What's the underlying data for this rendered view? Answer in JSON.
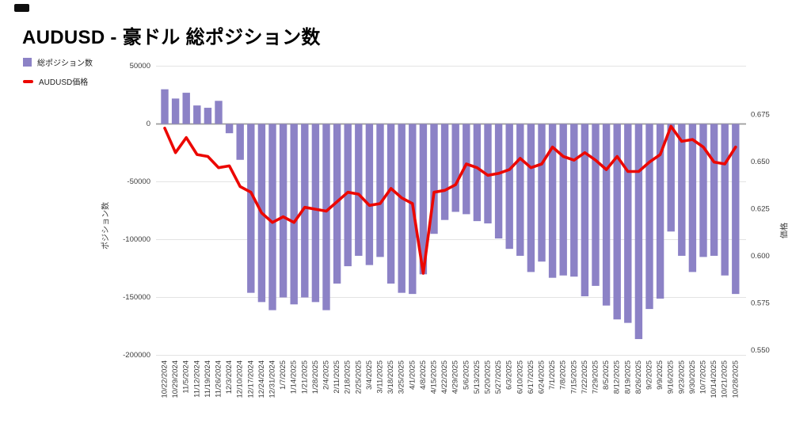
{
  "page": {
    "title": "AUDUSD - 豪ドル 総ポジション数"
  },
  "legend": [
    {
      "label": "総ポジション数",
      "type": "bar"
    },
    {
      "label": "AUDUSD価格",
      "type": "line"
    }
  ],
  "colors": {
    "bar": "#8c82c6",
    "line": "#ec0700",
    "grid": "#e3e3e3",
    "zero_line": "#9b9b9b",
    "text": "#3c3c3c",
    "title": "#000000",
    "background": "#ffffff"
  },
  "chart_data": {
    "type": "combo_bar_line",
    "title": "AUDUSD - 豪ドル 総ポジション数",
    "categories": [
      "10/22/2024",
      "10/29/2024",
      "11/5/2024",
      "11/12/2024",
      "11/19/2024",
      "11/26/2024",
      "12/3/2024",
      "12/10/2024",
      "12/17/2024",
      "12/24/2024",
      "12/31/2024",
      "1/7/2025",
      "1/14/2025",
      "1/21/2025",
      "1/28/2025",
      "2/4/2025",
      "2/11/2025",
      "2/18/2025",
      "2/25/2025",
      "3/4/2025",
      "3/11/2025",
      "3/18/2025",
      "3/25/2025",
      "4/1/2025",
      "4/8/2025",
      "4/15/2025",
      "4/22/2025",
      "4/29/2025",
      "5/6/2025",
      "5/13/2025",
      "5/20/2025",
      "5/27/2025",
      "6/3/2025",
      "6/10/2025",
      "6/17/2025",
      "6/24/2025",
      "7/1/2025",
      "7/8/2025",
      "7/15/2025",
      "7/22/2025",
      "7/29/2025",
      "8/5/2025",
      "8/12/2025",
      "8/19/2025",
      "8/26/2025",
      "9/2/2025",
      "9/9/2025",
      "9/16/2025",
      "9/23/2025",
      "9/30/2025",
      "10/7/2025",
      "10/14/2025",
      "10/21/2025",
      "10/28/2025"
    ],
    "series": [
      {
        "name": "総ポジション数",
        "type": "bar",
        "axis": "left",
        "values": [
          30000,
          22000,
          27000,
          16000,
          14000,
          20000,
          -8000,
          -31000,
          -146000,
          -154000,
          -161000,
          -150000,
          -156000,
          -150000,
          -154000,
          -161000,
          -138000,
          -123000,
          -114000,
          -122000,
          -115000,
          -138000,
          -146000,
          -147000,
          -130000,
          -95000,
          -83000,
          -76000,
          -78000,
          -84000,
          -86000,
          -99000,
          -108000,
          -114000,
          -128000,
          -119000,
          -133000,
          -131000,
          -132000,
          -149000,
          -140000,
          -157000,
          -169000,
          -172000,
          -186000,
          -160000,
          -151000,
          -93000,
          -114000,
          -128000,
          -115000,
          -114000,
          -131000,
          -147000
        ]
      },
      {
        "name": "AUDUSD価格",
        "type": "line",
        "axis": "right",
        "values": [
          0.668,
          0.655,
          0.663,
          0.654,
          0.653,
          0.647,
          0.648,
          0.637,
          0.634,
          0.623,
          0.618,
          0.621,
          0.618,
          0.626,
          0.625,
          0.624,
          0.629,
          0.634,
          0.633,
          0.627,
          0.628,
          0.636,
          0.631,
          0.628,
          0.591,
          0.634,
          0.635,
          0.638,
          0.649,
          0.647,
          0.643,
          0.644,
          0.646,
          0.652,
          0.647,
          0.649,
          0.658,
          0.653,
          0.651,
          0.655,
          0.651,
          0.646,
          0.653,
          0.645,
          0.645,
          0.65,
          0.654,
          0.669,
          0.661,
          0.662,
          0.658,
          0.65,
          0.649,
          0.658
        ]
      }
    ],
    "left_axis": {
      "label": "ポジション数",
      "ticks": [
        50000,
        0,
        -50000,
        -100000,
        -150000,
        -200000
      ],
      "range": [
        -200000,
        50000
      ]
    },
    "right_axis": {
      "label": "価格",
      "ticks": [
        0.675,
        0.65,
        0.625,
        0.6,
        0.575,
        0.55
      ],
      "range": [
        0.5475,
        0.7009
      ]
    },
    "layout": {
      "grid": true,
      "legend_position": "top-left",
      "x_labels_rotation": -90
    }
  }
}
